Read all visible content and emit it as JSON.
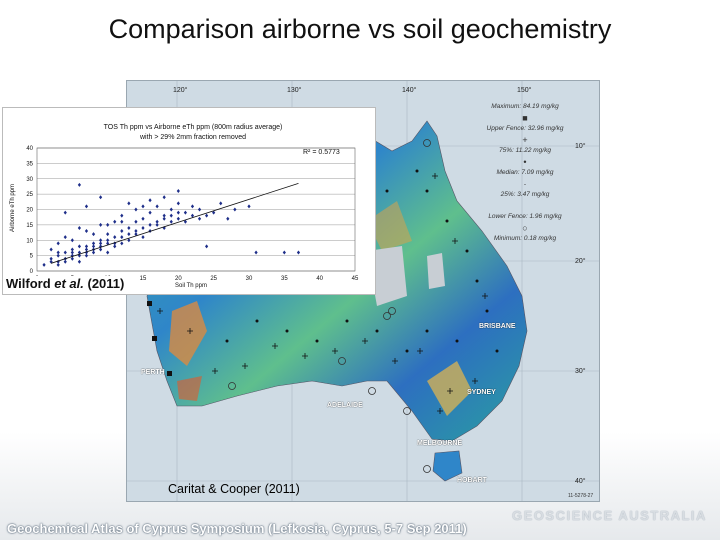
{
  "slide": {
    "title": "Comparison airborne vs soil geochemistry",
    "wilford_credit_prefix": "Wilford ",
    "wilford_credit_italic": "et al.",
    "wilford_credit_suffix": " (2011)",
    "caritat_credit": "Caritat & Cooper (2011)",
    "footer": "Geochemical Atlas of Cyprus Symposium (Lefkosia, Cyprus, 5-7 Sep 2011)",
    "brand": "GEOSCIENCE AUSTRALIA"
  },
  "map": {
    "longitude_labels": [
      "120°",
      "130°",
      "140°",
      "150°"
    ],
    "latitude_labels": [
      "10°",
      "20°",
      "30°",
      "40°"
    ],
    "cities": [
      "BRISBANE",
      "PERTH",
      "SYDNEY",
      "ADELAIDE",
      "MELBOURNE",
      "HOBART"
    ],
    "figure_id": "11-5278-27",
    "legend": {
      "maximum": "Maximum: 84.19 mg/kg",
      "upper_fence": "Upper Fence: 32.96 mg/kg",
      "p75": "75%: 11.22 mg/kg",
      "median": "Median: 7.09 mg/kg",
      "p25": "25%: 3.47 mg/kg",
      "lower_fence": "Lower Fence: 1.96 mg/kg",
      "minimum": "Minimum: 0.18 mg/kg",
      "symbols": [
        "■",
        "+",
        "•",
        "·",
        "○"
      ]
    }
  },
  "chart_data": {
    "type": "scatter",
    "title": "TOS Th ppm  vs Airborne eTh ppm  (800m radius average)",
    "subtitle": "with > 29% 2mm fraction removed",
    "xlabel": "Soil Th  ppm",
    "ylabel": "Airborne eTh ppm",
    "r2_label": "R² = 0.5773",
    "xlim": [
      0,
      45
    ],
    "ylim": [
      0,
      40
    ],
    "xticks": [
      "0",
      "5",
      "10",
      "15",
      "20",
      "25",
      "30",
      "35",
      "40",
      "45"
    ],
    "yticks": [
      "0",
      "5",
      "10",
      "15",
      "20",
      "25",
      "30",
      "35",
      "40"
    ],
    "trendline": [
      [
        2,
        2.5
      ],
      [
        37,
        28.5
      ]
    ],
    "points": [
      [
        1,
        2
      ],
      [
        2,
        3
      ],
      [
        3,
        2
      ],
      [
        3,
        5
      ],
      [
        4,
        3
      ],
      [
        4,
        6
      ],
      [
        5,
        4
      ],
      [
        5,
        7
      ],
      [
        6,
        3
      ],
      [
        6,
        6
      ],
      [
        7,
        5
      ],
      [
        7,
        8
      ],
      [
        8,
        6
      ],
      [
        8,
        9
      ],
      [
        9,
        7
      ],
      [
        9,
        10
      ],
      [
        10,
        6
      ],
      [
        10,
        9
      ],
      [
        10,
        12
      ],
      [
        11,
        8
      ],
      [
        11,
        11
      ],
      [
        12,
        9
      ],
      [
        12,
        13
      ],
      [
        13,
        10
      ],
      [
        13,
        14
      ],
      [
        14,
        12
      ],
      [
        14,
        16
      ],
      [
        15,
        11
      ],
      [
        15,
        17
      ],
      [
        16,
        13
      ],
      [
        16,
        19
      ],
      [
        17,
        15
      ],
      [
        17,
        21
      ],
      [
        18,
        14
      ],
      [
        18,
        18
      ],
      [
        19,
        16
      ],
      [
        19,
        20
      ],
      [
        20,
        17
      ],
      [
        20,
        22
      ],
      [
        21,
        19
      ],
      [
        22,
        18
      ],
      [
        22,
        21
      ],
      [
        23,
        20
      ],
      [
        24,
        18
      ],
      [
        25,
        19
      ],
      [
        26,
        22
      ],
      [
        27,
        17
      ],
      [
        28,
        20
      ],
      [
        30,
        21
      ],
      [
        31,
        6
      ],
      [
        35,
        6
      ],
      [
        37,
        6
      ],
      [
        24,
        8
      ],
      [
        2,
        7
      ],
      [
        3,
        9
      ],
      [
        4,
        11
      ],
      [
        6,
        14
      ],
      [
        8,
        12
      ],
      [
        9,
        15
      ],
      [
        11,
        16
      ],
      [
        12,
        18
      ],
      [
        13,
        22
      ],
      [
        14,
        20
      ],
      [
        15,
        21
      ],
      [
        5,
        10
      ],
      [
        7,
        13
      ],
      [
        10,
        15
      ],
      [
        12,
        16
      ],
      [
        16,
        23
      ],
      [
        18,
        24
      ],
      [
        20,
        26
      ],
      [
        4,
        19
      ],
      [
        7,
        21
      ],
      [
        6,
        28
      ],
      [
        9,
        24
      ],
      [
        2,
        4
      ],
      [
        3,
        6
      ],
      [
        5,
        5
      ],
      [
        6,
        8
      ],
      [
        7,
        6
      ],
      [
        8,
        7
      ],
      [
        9,
        8
      ],
      [
        10,
        10
      ],
      [
        11,
        9
      ],
      [
        12,
        11
      ],
      [
        13,
        12
      ],
      [
        14,
        13
      ],
      [
        15,
        14
      ],
      [
        16,
        15
      ],
      [
        17,
        16
      ],
      [
        18,
        17
      ],
      [
        19,
        18
      ],
      [
        20,
        19
      ],
      [
        21,
        16
      ],
      [
        23,
        17
      ],
      [
        3,
        3
      ],
      [
        4,
        4
      ],
      [
        5,
        6
      ],
      [
        6,
        5
      ],
      [
        7,
        7
      ],
      [
        8,
        8
      ],
      [
        9,
        9
      ]
    ]
  }
}
